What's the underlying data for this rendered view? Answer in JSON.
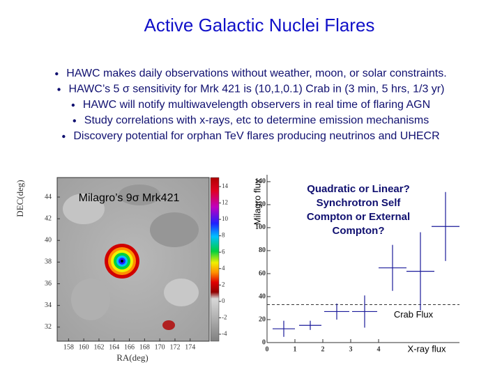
{
  "title": "Active Galactic Nuclei Flares",
  "bullets": [
    "HAWC makes daily observations without weather, moon, or solar constraints.",
    "HAWC’s 5 σ sensitivity for Mrk 421 is (10,1,0.1) Crab in (3 min, 5 hrs, 1/3 yr)",
    "HAWC will notify multiwavelength observers in real time of flaring AGN",
    "Study correlations with x-rays, etc to determine emission mechanisms",
    "Discovery potential for orphan TeV flares producing neutrinos and UHECR"
  ],
  "sky_map": {
    "label": "Milagro’s 9σ Mrk421",
    "x_label": "RA(deg)",
    "y_label": "DEC(deg)",
    "xlim": [
      156.5,
      176.5
    ],
    "xticks": [
      158,
      160,
      162,
      164,
      166,
      168,
      170,
      172,
      174
    ],
    "ylim": [
      30.7,
      45.8
    ],
    "yticks": [
      32,
      34,
      36,
      38,
      40,
      42,
      44
    ],
    "colorbar_lim": [
      -4.85,
      15.1
    ],
    "colorbar_ticks": [
      -4,
      -2,
      0,
      2,
      4,
      6,
      8,
      10,
      12,
      14
    ]
  },
  "chart_data": {
    "type": "scatter",
    "x_label": "X-ray flux",
    "y_label": "Milagro flux",
    "annotation": [
      "Quadratic or Linear?",
      "Synchrotron Self",
      "Compton or External",
      "Compton?"
    ],
    "x": [
      0.6,
      1.55,
      2.5,
      3.5,
      4.5,
      5.5,
      6.4
    ],
    "xerr": [
      0.4,
      0.4,
      0.45,
      0.45,
      0.5,
      0.5,
      0.5
    ],
    "values": [
      12,
      15,
      27,
      27,
      65,
      62,
      101
    ],
    "yerr": [
      7,
      4,
      7,
      14,
      20,
      34,
      30
    ],
    "color": "#1a1a9a",
    "reference_line": {
      "value": 33,
      "label": "Crab Flux"
    },
    "xlim": [
      0,
      6.9
    ],
    "xticks": [
      0,
      1,
      2,
      3,
      4
    ],
    "ylim": [
      0,
      146
    ],
    "yticks": [
      0,
      20,
      40,
      60,
      80,
      100,
      120,
      140
    ]
  }
}
